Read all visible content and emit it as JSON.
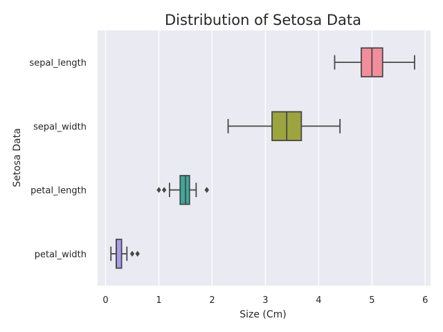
{
  "chart_data": {
    "type": "box",
    "orientation": "horizontal",
    "title": "Distribution of Setosa Data",
    "xlabel": "Size (Cm)",
    "ylabel": "Setosa Data",
    "xlim": [
      -0.15,
      6.1
    ],
    "xticks": [
      0,
      1,
      2,
      3,
      4,
      5,
      6
    ],
    "grid": true,
    "categories": [
      "sepal_length",
      "sepal_width",
      "petal_length",
      "petal_width"
    ],
    "boxes": [
      {
        "category": "sepal_length",
        "whisker_low": 4.3,
        "q1": 4.8,
        "median": 5.0,
        "q3": 5.2,
        "whisker_high": 5.8,
        "outliers": [],
        "color": "#f28e9b"
      },
      {
        "category": "sepal_width",
        "whisker_low": 2.3,
        "q1": 3.125,
        "median": 3.4,
        "q3": 3.675,
        "whisker_high": 4.4,
        "outliers": [],
        "color": "#9ca43d"
      },
      {
        "category": "petal_length",
        "whisker_low": 1.2,
        "q1": 1.4,
        "median": 1.5,
        "q3": 1.575,
        "whisker_high": 1.7,
        "outliers": [
          1.0,
          1.1,
          1.9,
          1.9
        ],
        "color": "#3aaa9c"
      },
      {
        "category": "petal_width",
        "whisker_low": 0.1,
        "q1": 0.2,
        "median": 0.2,
        "q3": 0.3,
        "whisker_high": 0.4,
        "outliers": [
          0.5,
          0.6
        ],
        "color": "#a99ced"
      }
    ],
    "colors": {
      "background": "#eaeaf2",
      "grid": "#ffffff",
      "line": "#474747",
      "text": "#262626"
    }
  }
}
